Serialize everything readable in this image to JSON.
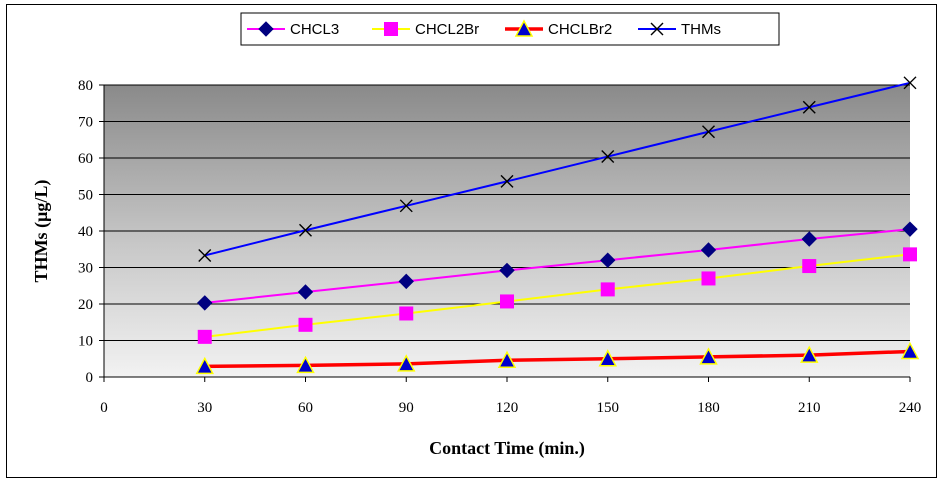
{
  "chart_data": {
    "type": "line",
    "xlabel": "Contact Time (min.)",
    "ylabel": "THMs (µg/L)",
    "x_ticks": [
      0,
      30,
      60,
      90,
      120,
      150,
      180,
      210,
      240
    ],
    "y_ticks": [
      0,
      10,
      20,
      30,
      40,
      50,
      60,
      70,
      80
    ],
    "xlim": [
      0,
      240
    ],
    "ylim": [
      0,
      80
    ],
    "x": [
      30,
      60,
      90,
      120,
      150,
      180,
      210,
      240
    ],
    "grid": "horizontal",
    "legend_position": "top",
    "plot_background": "gradient-gray",
    "series": [
      {
        "name": "CHCL3",
        "values": [
          20.3,
          23.3,
          26.2,
          29.2,
          32.0,
          34.8,
          37.8,
          40.5
        ],
        "color": "#ff00ff",
        "marker": "diamond",
        "marker_color": "#000080"
      },
      {
        "name": "CHCL2Br",
        "values": [
          11.0,
          14.3,
          17.4,
          20.7,
          24.0,
          27.0,
          30.4,
          33.6
        ],
        "color": "#ffff00",
        "marker": "square",
        "marker_color": "#ff00ff"
      },
      {
        "name": "CHCLBr2",
        "values": [
          2.9,
          3.2,
          3.6,
          4.6,
          5.0,
          5.5,
          6.0,
          7.0
        ],
        "color": "#ff0000",
        "marker": "triangle",
        "marker_color": "#0000cc"
      },
      {
        "name": "THMs",
        "values": [
          33.3,
          40.2,
          46.9,
          53.6,
          60.4,
          67.2,
          73.9,
          80.6
        ],
        "color": "#0000ff",
        "marker": "x",
        "marker_color": "#000000"
      }
    ]
  }
}
